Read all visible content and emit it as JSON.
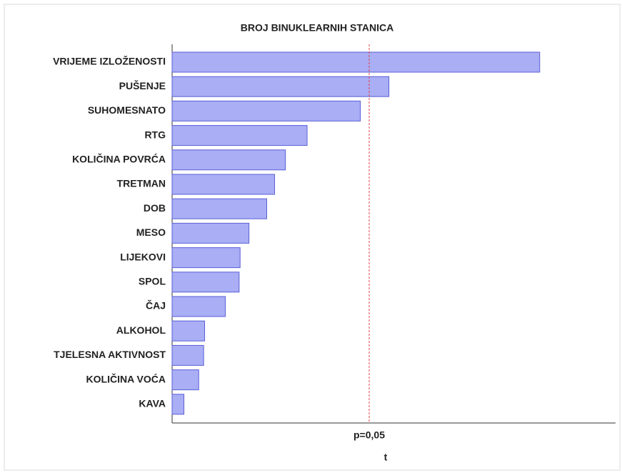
{
  "chart_data": {
    "type": "hbar",
    "title": "BROJ BINUKLEARNIH STANICA",
    "categories": [
      "VRIJEME IZLOŽENOSTI",
      "PUŠENJE",
      "SUHOMESNATO",
      "RTG",
      "KOLIČINA POVRĆA",
      "TRETMAN",
      "DOB",
      "MESO",
      "LIJEKOVI",
      "SPOL",
      "ČAJ",
      "ALKOHOL",
      "TJELESNA AKTIVNOST",
      "KOLIČINA VOĆA",
      "KAVA"
    ],
    "values": [
      3.73,
      2.2,
      1.91,
      1.37,
      1.15,
      1.04,
      0.96,
      0.78,
      0.69,
      0.68,
      0.54,
      0.33,
      0.32,
      0.27,
      0.12
    ],
    "color": "#a9aef5",
    "xlim": [
      0,
      4.5
    ],
    "reference_line": {
      "value": 2.0,
      "label": "p=0,05",
      "color": "#e04040"
    },
    "xlabel": "t"
  }
}
